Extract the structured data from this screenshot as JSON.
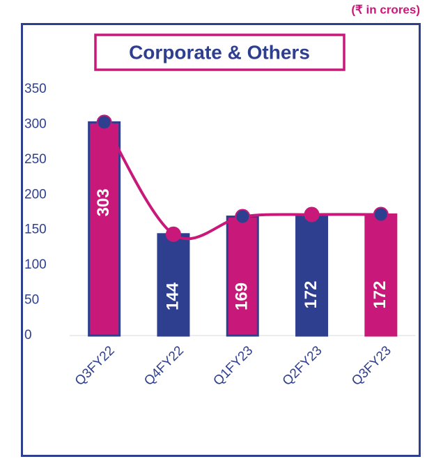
{
  "chart_data": {
    "type": "bar",
    "title": "Corporate & Others",
    "unit_note": "(₹ in crores)",
    "categories": [
      "Q3FY22",
      "Q4FY22",
      "Q1FY23",
      "Q2FY23",
      "Q3FY23"
    ],
    "values": [
      303,
      144,
      169,
      172,
      172
    ],
    "colors": [
      "#c8187a",
      "#2e3f8f",
      "#c8187a",
      "#2e3f8f",
      "#c8187a"
    ],
    "line_color": "#c8187a",
    "marker_colors": [
      "#2e3f8f",
      "#c8187a",
      "#2e3f8f",
      "#c8187a",
      "#2e3f8f"
    ],
    "ylim": [
      0,
      350
    ],
    "yticks": [
      0,
      50,
      100,
      150,
      200,
      250,
      300,
      350
    ]
  }
}
